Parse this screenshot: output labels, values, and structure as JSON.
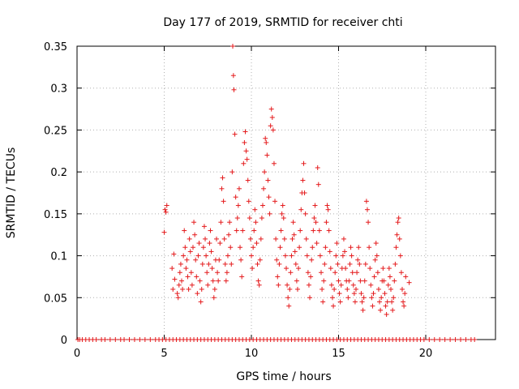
{
  "chart_data": {
    "type": "scatter",
    "title": "Day 177 of 2019, SRMTID for receiver chti",
    "xlabel": "GPS time / hours",
    "ylabel": "SRMTID / TECUs",
    "xlim": [
      0,
      24
    ],
    "ylim": [
      0,
      0.35
    ],
    "xticks": [
      "0",
      "5",
      "10",
      "15",
      "20"
    ],
    "yticks": [
      "0",
      "0.05",
      "0.1",
      "0.15",
      "0.2",
      "0.25",
      "0.3",
      "0.35"
    ],
    "grid": true,
    "marker": "+",
    "colors": {
      "series": "#e41a1c",
      "grid": "#b0b0b0",
      "axes": "#000000"
    },
    "zero_series": {
      "x": [
        0.05,
        0.15,
        0.3,
        0.5,
        0.7,
        0.9,
        1.1,
        1.4,
        1.6,
        1.9,
        2.2,
        2.5,
        2.7,
        3.0,
        3.3,
        3.6,
        3.9,
        4.2,
        4.5,
        4.7,
        4.9,
        5.1,
        5.3,
        5.5,
        5.7,
        5.9,
        6.1,
        6.3,
        6.5,
        6.7,
        6.9,
        7.1,
        7.3,
        7.5,
        7.7,
        7.9,
        8.1,
        8.3,
        8.5,
        8.7,
        8.9,
        9.1,
        9.3,
        9.5,
        9.7,
        9.9,
        10.1,
        10.3,
        10.5,
        10.7,
        10.9,
        11.1,
        11.3,
        11.5,
        11.7,
        11.9,
        12.1,
        12.3,
        12.5,
        12.7,
        12.9,
        13.1,
        13.3,
        13.5,
        13.7,
        13.9,
        14.1,
        14.3,
        14.5,
        14.7,
        14.9,
        15.1,
        15.3,
        15.5,
        15.7,
        15.9,
        16.1,
        16.3,
        16.5,
        16.7,
        16.9,
        17.1,
        17.3,
        17.5,
        17.7,
        17.9,
        18.1,
        18.3,
        18.5,
        18.7,
        18.9,
        19.1,
        19.3,
        19.5,
        19.7,
        19.9,
        20.2,
        20.5,
        20.8,
        21.1,
        21.4,
        21.7,
        22.0,
        22.3,
        22.6,
        22.8
      ],
      "y_value": 0
    },
    "series_points": [
      [
        5.0,
        0.128
      ],
      [
        5.05,
        0.155
      ],
      [
        5.1,
        0.152
      ],
      [
        5.15,
        0.16
      ],
      [
        5.45,
        0.085
      ],
      [
        5.5,
        0.06
      ],
      [
        5.55,
        0.102
      ],
      [
        5.6,
        0.072
      ],
      [
        5.75,
        0.055
      ],
      [
        5.8,
        0.05
      ],
      [
        5.85,
        0.065
      ],
      [
        5.9,
        0.08
      ],
      [
        5.95,
        0.09
      ],
      [
        6.0,
        0.07
      ],
      [
        6.05,
        0.06
      ],
      [
        6.1,
        0.1
      ],
      [
        6.15,
        0.13
      ],
      [
        6.2,
        0.11
      ],
      [
        6.25,
        0.085
      ],
      [
        6.3,
        0.095
      ],
      [
        6.35,
        0.075
      ],
      [
        6.4,
        0.06
      ],
      [
        6.45,
        0.12
      ],
      [
        6.5,
        0.105
      ],
      [
        6.55,
        0.08
      ],
      [
        6.6,
        0.065
      ],
      [
        6.65,
        0.11
      ],
      [
        6.7,
        0.14
      ],
      [
        6.75,
        0.125
      ],
      [
        6.8,
        0.095
      ],
      [
        6.85,
        0.075
      ],
      [
        6.9,
        0.055
      ],
      [
        6.95,
        0.1
      ],
      [
        7.0,
        0.115
      ],
      [
        7.05,
        0.07
      ],
      [
        7.1,
        0.045
      ],
      [
        7.15,
        0.06
      ],
      [
        7.2,
        0.09
      ],
      [
        7.25,
        0.11
      ],
      [
        7.3,
        0.135
      ],
      [
        7.35,
        0.12
      ],
      [
        7.4,
        0.1
      ],
      [
        7.45,
        0.08
      ],
      [
        7.5,
        0.065
      ],
      [
        7.55,
        0.09
      ],
      [
        7.6,
        0.115
      ],
      [
        7.65,
        0.13
      ],
      [
        7.7,
        0.105
      ],
      [
        7.75,
        0.085
      ],
      [
        7.8,
        0.07
      ],
      [
        7.85,
        0.05
      ],
      [
        7.9,
        0.06
      ],
      [
        7.95,
        0.095
      ],
      [
        8.0,
        0.12
      ],
      [
        8.05,
        0.08
      ],
      [
        8.1,
        0.07
      ],
      [
        8.15,
        0.095
      ],
      [
        8.2,
        0.115
      ],
      [
        8.25,
        0.14
      ],
      [
        8.3,
        0.18
      ],
      [
        8.35,
        0.193
      ],
      [
        8.4,
        0.165
      ],
      [
        8.45,
        0.12
      ],
      [
        8.5,
        0.09
      ],
      [
        8.55,
        0.07
      ],
      [
        8.6,
        0.08
      ],
      [
        8.65,
        0.1
      ],
      [
        8.7,
        0.125
      ],
      [
        8.75,
        0.14
      ],
      [
        8.8,
        0.11
      ],
      [
        8.85,
        0.09
      ],
      [
        8.9,
        0.2
      ],
      [
        8.93,
        0.35
      ],
      [
        8.97,
        0.315
      ],
      [
        9.0,
        0.298
      ],
      [
        9.05,
        0.245
      ],
      [
        9.1,
        0.17
      ],
      [
        9.15,
        0.13
      ],
      [
        9.2,
        0.145
      ],
      [
        9.25,
        0.16
      ],
      [
        9.3,
        0.18
      ],
      [
        9.35,
        0.11
      ],
      [
        9.4,
        0.095
      ],
      [
        9.45,
        0.075
      ],
      [
        9.5,
        0.13
      ],
      [
        9.55,
        0.21
      ],
      [
        9.6,
        0.235
      ],
      [
        9.65,
        0.248
      ],
      [
        9.7,
        0.225
      ],
      [
        9.75,
        0.215
      ],
      [
        9.8,
        0.19
      ],
      [
        9.85,
        0.165
      ],
      [
        9.9,
        0.145
      ],
      [
        9.95,
        0.12
      ],
      [
        10.0,
        0.1
      ],
      [
        10.05,
        0.085
      ],
      [
        10.1,
        0.11
      ],
      [
        10.15,
        0.13
      ],
      [
        10.2,
        0.155
      ],
      [
        10.25,
        0.14
      ],
      [
        10.3,
        0.115
      ],
      [
        10.35,
        0.09
      ],
      [
        10.4,
        0.07
      ],
      [
        10.45,
        0.065
      ],
      [
        10.5,
        0.095
      ],
      [
        10.55,
        0.12
      ],
      [
        10.6,
        0.145
      ],
      [
        10.65,
        0.16
      ],
      [
        10.7,
        0.18
      ],
      [
        10.75,
        0.2
      ],
      [
        10.8,
        0.24
      ],
      [
        10.85,
        0.235
      ],
      [
        10.9,
        0.22
      ],
      [
        10.95,
        0.19
      ],
      [
        11.0,
        0.17
      ],
      [
        11.05,
        0.15
      ],
      [
        11.1,
        0.255
      ],
      [
        11.15,
        0.275
      ],
      [
        11.2,
        0.265
      ],
      [
        11.25,
        0.25
      ],
      [
        11.3,
        0.21
      ],
      [
        11.35,
        0.165
      ],
      [
        11.4,
        0.12
      ],
      [
        11.45,
        0.095
      ],
      [
        11.5,
        0.075
      ],
      [
        11.55,
        0.065
      ],
      [
        11.6,
        0.09
      ],
      [
        11.65,
        0.11
      ],
      [
        11.7,
        0.13
      ],
      [
        11.75,
        0.15
      ],
      [
        11.8,
        0.16
      ],
      [
        11.85,
        0.145
      ],
      [
        11.9,
        0.12
      ],
      [
        11.95,
        0.1
      ],
      [
        12.0,
        0.085
      ],
      [
        12.05,
        0.065
      ],
      [
        12.1,
        0.05
      ],
      [
        12.15,
        0.04
      ],
      [
        12.2,
        0.06
      ],
      [
        12.25,
        0.08
      ],
      [
        12.3,
        0.1
      ],
      [
        12.35,
        0.12
      ],
      [
        12.4,
        0.14
      ],
      [
        12.45,
        0.125
      ],
      [
        12.5,
        0.105
      ],
      [
        12.55,
        0.09
      ],
      [
        12.6,
        0.07
      ],
      [
        12.65,
        0.06
      ],
      [
        12.7,
        0.085
      ],
      [
        12.75,
        0.11
      ],
      [
        12.8,
        0.13
      ],
      [
        12.85,
        0.155
      ],
      [
        12.9,
        0.175
      ],
      [
        12.95,
        0.19
      ],
      [
        13.0,
        0.21
      ],
      [
        13.05,
        0.175
      ],
      [
        13.1,
        0.15
      ],
      [
        13.15,
        0.12
      ],
      [
        13.2,
        0.1
      ],
      [
        13.25,
        0.08
      ],
      [
        13.3,
        0.065
      ],
      [
        13.35,
        0.05
      ],
      [
        13.4,
        0.075
      ],
      [
        13.45,
        0.095
      ],
      [
        13.5,
        0.11
      ],
      [
        13.55,
        0.13
      ],
      [
        13.6,
        0.145
      ],
      [
        13.65,
        0.16
      ],
      [
        13.7,
        0.14
      ],
      [
        13.75,
        0.115
      ],
      [
        13.8,
        0.205
      ],
      [
        13.85,
        0.185
      ],
      [
        13.9,
        0.13
      ],
      [
        13.95,
        0.1
      ],
      [
        14.0,
        0.08
      ],
      [
        14.05,
        0.06
      ],
      [
        14.1,
        0.045
      ],
      [
        14.15,
        0.07
      ],
      [
        14.2,
        0.09
      ],
      [
        14.25,
        0.11
      ],
      [
        14.3,
        0.14
      ],
      [
        14.35,
        0.16
      ],
      [
        14.4,
        0.155
      ],
      [
        14.45,
        0.13
      ],
      [
        14.5,
        0.105
      ],
      [
        14.55,
        0.085
      ],
      [
        14.6,
        0.065
      ],
      [
        14.65,
        0.05
      ],
      [
        14.7,
        0.04
      ],
      [
        14.75,
        0.06
      ],
      [
        14.8,
        0.08
      ],
      [
        14.85,
        0.1
      ],
      [
        14.9,
        0.115
      ],
      [
        14.95,
        0.09
      ],
      [
        15.0,
        0.07
      ],
      [
        15.05,
        0.055
      ],
      [
        15.1,
        0.045
      ],
      [
        15.15,
        0.065
      ],
      [
        15.2,
        0.085
      ],
      [
        15.25,
        0.1
      ],
      [
        15.3,
        0.12
      ],
      [
        15.35,
        0.105
      ],
      [
        15.4,
        0.085
      ],
      [
        15.45,
        0.07
      ],
      [
        15.5,
        0.06
      ],
      [
        15.55,
        0.05
      ],
      [
        15.6,
        0.07
      ],
      [
        15.65,
        0.09
      ],
      [
        15.7,
        0.11
      ],
      [
        15.75,
        0.1
      ],
      [
        15.8,
        0.08
      ],
      [
        15.85,
        0.065
      ],
      [
        15.9,
        0.055
      ],
      [
        15.95,
        0.045
      ],
      [
        16.0,
        0.06
      ],
      [
        16.05,
        0.08
      ],
      [
        16.1,
        0.095
      ],
      [
        16.15,
        0.11
      ],
      [
        16.2,
        0.09
      ],
      [
        16.25,
        0.07
      ],
      [
        16.3,
        0.055
      ],
      [
        16.35,
        0.045
      ],
      [
        16.4,
        0.035
      ],
      [
        16.45,
        0.05
      ],
      [
        16.5,
        0.07
      ],
      [
        16.55,
        0.09
      ],
      [
        16.6,
        0.165
      ],
      [
        16.65,
        0.155
      ],
      [
        16.7,
        0.14
      ],
      [
        16.75,
        0.11
      ],
      [
        16.8,
        0.085
      ],
      [
        16.85,
        0.065
      ],
      [
        16.9,
        0.05
      ],
      [
        16.95,
        0.04
      ],
      [
        17.0,
        0.055
      ],
      [
        17.05,
        0.075
      ],
      [
        17.1,
        0.095
      ],
      [
        17.15,
        0.115
      ],
      [
        17.2,
        0.1
      ],
      [
        17.25,
        0.08
      ],
      [
        17.3,
        0.06
      ],
      [
        17.35,
        0.045
      ],
      [
        17.4,
        0.035
      ],
      [
        17.45,
        0.05
      ],
      [
        17.5,
        0.07
      ],
      [
        17.55,
        0.085
      ],
      [
        17.6,
        0.07
      ],
      [
        17.65,
        0.055
      ],
      [
        17.7,
        0.04
      ],
      [
        17.75,
        0.03
      ],
      [
        17.8,
        0.045
      ],
      [
        17.85,
        0.065
      ],
      [
        17.9,
        0.085
      ],
      [
        17.95,
        0.075
      ],
      [
        18.0,
        0.06
      ],
      [
        18.05,
        0.045
      ],
      [
        18.1,
        0.035
      ],
      [
        18.15,
        0.05
      ],
      [
        18.2,
        0.07
      ],
      [
        18.25,
        0.09
      ],
      [
        18.3,
        0.11
      ],
      [
        18.35,
        0.125
      ],
      [
        18.4,
        0.14
      ],
      [
        18.45,
        0.145
      ],
      [
        18.5,
        0.12
      ],
      [
        18.55,
        0.1
      ],
      [
        18.6,
        0.08
      ],
      [
        18.65,
        0.06
      ],
      [
        18.7,
        0.045
      ],
      [
        18.75,
        0.04
      ],
      [
        18.8,
        0.055
      ],
      [
        18.85,
        0.075
      ],
      [
        19.05,
        0.068
      ]
    ]
  }
}
